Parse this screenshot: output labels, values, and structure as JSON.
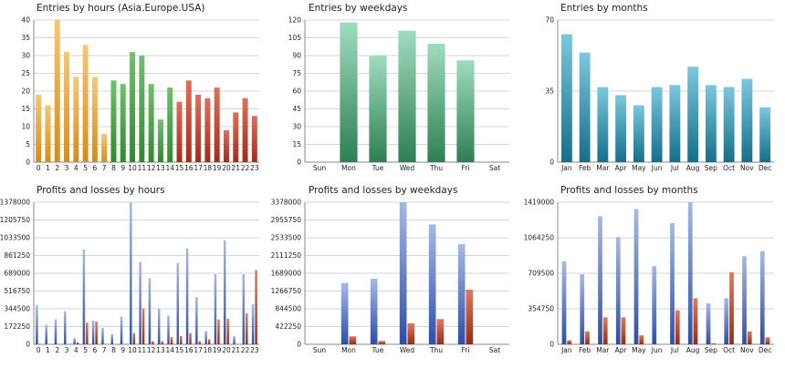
{
  "colors": {
    "orange_top": "#f7c774",
    "orange_bot": "#d98a14",
    "green_top": "#72c06e",
    "green_bot": "#2d8a2d",
    "red_top": "#e0705a",
    "red_bot": "#a52a18",
    "mint_top": "#9fdcbf",
    "mint_bot": "#2e7f53",
    "teal_top": "#7cc7de",
    "teal_bot": "#136f8b",
    "blue_top": "#a6b9e6",
    "blue_bot": "#2c4ea6",
    "loss_top": "#e07a5a",
    "loss_bot": "#9a2a14"
  },
  "chart_data": [
    {
      "type": "bar",
      "title": "Entries by hours (Asia.Europe.USA)",
      "categories": [
        "0",
        "1",
        "2",
        "3",
        "4",
        "5",
        "6",
        "7",
        "8",
        "9",
        "10",
        "11",
        "12",
        "13",
        "14",
        "15",
        "16",
        "17",
        "18",
        "19",
        "20",
        "21",
        "22",
        "23"
      ],
      "values": [
        19,
        16,
        40,
        31,
        24,
        33,
        24,
        8,
        23,
        22,
        31,
        30,
        22,
        12,
        21,
        17,
        23,
        19,
        18,
        21,
        9,
        14,
        18,
        13
      ],
      "bar_colors": [
        "orange",
        "orange",
        "orange",
        "orange",
        "orange",
        "orange",
        "orange",
        "orange",
        "green",
        "green",
        "green",
        "green",
        "green",
        "green",
        "green",
        "red",
        "red",
        "red",
        "red",
        "red",
        "red",
        "red",
        "red",
        "red"
      ],
      "yticks": [
        "0",
        "5",
        "10",
        "15",
        "20",
        "25",
        "30",
        "35",
        "40"
      ],
      "ylim": [
        0,
        40
      ],
      "grid": true
    },
    {
      "type": "bar",
      "title": "Entries by weekdays",
      "categories": [
        "Sun",
        "Mon",
        "Tue",
        "Wed",
        "Thu",
        "Fri",
        "Sat"
      ],
      "values": [
        0,
        118,
        90,
        111,
        100,
        86,
        0
      ],
      "yticks": [
        "0",
        "15",
        "30",
        "45",
        "60",
        "75",
        "90",
        "105",
        "120"
      ],
      "ylim": [
        0,
        120
      ],
      "grid": true
    },
    {
      "type": "bar",
      "title": "Entries by months",
      "categories": [
        "Jan",
        "Feb",
        "Mar",
        "Apr",
        "May",
        "Jun",
        "Jul",
        "Aug",
        "Sep",
        "Oct",
        "Nov",
        "Dec"
      ],
      "values": [
        63,
        54,
        37,
        33,
        28,
        37,
        38,
        47,
        38,
        37,
        41,
        27
      ],
      "yticks": [
        "0",
        "35",
        "70"
      ],
      "ylim": [
        0,
        70
      ],
      "grid": true
    },
    {
      "type": "bar",
      "title": "Profits and losses by hours",
      "categories": [
        "0",
        "1",
        "2",
        "3",
        "4",
        "5",
        "6",
        "7",
        "8",
        "9",
        "10",
        "11",
        "12",
        "13",
        "14",
        "15",
        "16",
        "17",
        "18",
        "19",
        "20",
        "21",
        "22",
        "23"
      ],
      "series": [
        {
          "values": [
            380000,
            190000,
            240000,
            320000,
            60000,
            920000,
            230000,
            160000,
            100000,
            270000,
            1378000,
            800000,
            640000,
            350000,
            280000,
            790000,
            930000,
            460000,
            130000,
            680000,
            1010000,
            80000,
            680000,
            390000
          ]
        },
        {
          "values": [
            0,
            0,
            0,
            0,
            20000,
            210000,
            220000,
            0,
            0,
            0,
            110000,
            350000,
            30000,
            30000,
            70000,
            80000,
            110000,
            30000,
            50000,
            240000,
            250000,
            0,
            300000,
            720000
          ]
        }
      ],
      "yticks": [
        "0",
        "172250",
        "344500",
        "516750",
        "689000",
        "861250",
        "1033500",
        "1205750",
        "1378000"
      ],
      "ylim": [
        0,
        1378000
      ],
      "grid": true
    },
    {
      "type": "bar",
      "title": "Profits and losses by weekdays",
      "categories": [
        "Sun",
        "Mon",
        "Tue",
        "Wed",
        "Thu",
        "Fri",
        "Sat"
      ],
      "series": [
        {
          "values": [
            0,
            1460000,
            1560000,
            3378000,
            2850000,
            2380000,
            0
          ]
        },
        {
          "values": [
            0,
            190000,
            80000,
            500000,
            600000,
            1300000,
            0
          ]
        }
      ],
      "yticks": [
        "0",
        "422250",
        "844500",
        "1266750",
        "1689000",
        "2111250",
        "2533500",
        "2955750",
        "3378000"
      ],
      "ylim": [
        0,
        3378000
      ],
      "grid": true
    },
    {
      "type": "bar",
      "title": "Profits and losses by months",
      "categories": [
        "Jan",
        "Feb",
        "Mar",
        "Apr",
        "May",
        "Jun",
        "Jul",
        "Aug",
        "Sep",
        "Oct",
        "Nov",
        "Dec"
      ],
      "series": [
        {
          "values": [
            830000,
            700000,
            1280000,
            1070000,
            1350000,
            780000,
            1210000,
            1419000,
            410000,
            460000,
            880000,
            930000
          ]
        },
        {
          "values": [
            40000,
            130000,
            270000,
            270000,
            90000,
            0,
            340000,
            460000,
            10000,
            720000,
            130000,
            70000
          ]
        }
      ],
      "yticks": [
        "0",
        "354750",
        "709500",
        "1064250",
        "1419000"
      ],
      "ylim": [
        0,
        1419000
      ],
      "grid": true
    }
  ]
}
